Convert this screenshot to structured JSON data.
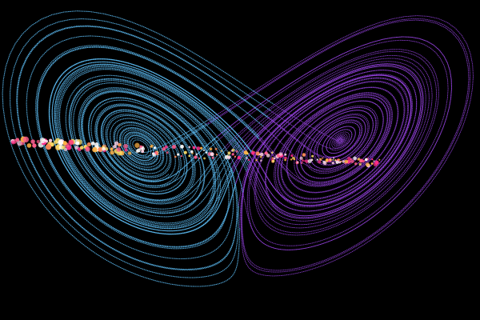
{
  "scene": {
    "background_color": "#000000",
    "left_lobe": {
      "color": "#5ab8ee"
    },
    "right_lobe": {
      "color": "#9b45e8"
    },
    "particle_palette": [
      "#ffe066",
      "#ffb347",
      "#ff8c5a",
      "#ff5c8a",
      "#ff2e88",
      "#ffd1e3",
      "#ffffff"
    ]
  }
}
